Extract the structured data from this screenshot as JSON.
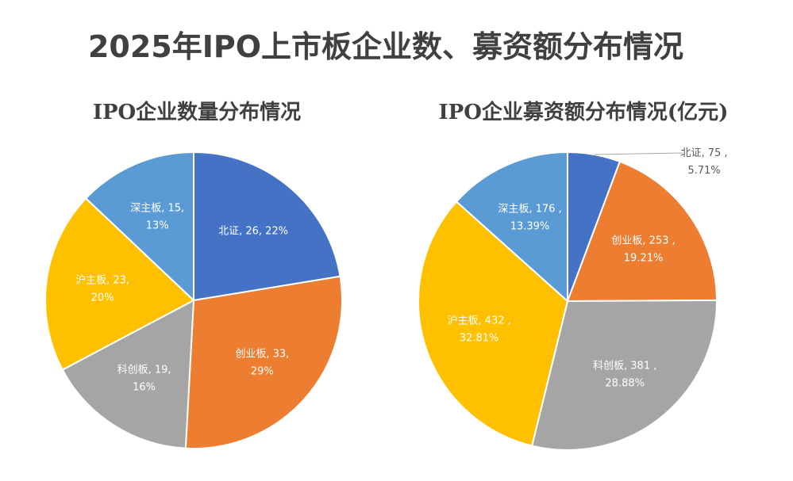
{
  "title": "2025年IPO上市板企业数、募资额分布情况",
  "chart_data": [
    {
      "type": "pie",
      "title": "IPO企业数量分布情况",
      "values": [
        26,
        33,
        19,
        23,
        15
      ],
      "value_labels": [
        "北证, 26, 22%",
        "创业板, 33,\n29%",
        "科创板, 19,\n16%",
        "沪主板, 23,\n20%",
        "深主板, 15,\n13%"
      ],
      "colors": [
        "#4472c4",
        "#ed7d31",
        "#a5a5a5",
        "#ffc000",
        "#5b9bd5"
      ]
    },
    {
      "type": "pie",
      "title": "IPO企业募资额分布情况(亿元)",
      "values": [
        75,
        253,
        381,
        432,
        176
      ],
      "value_labels": [
        "北证, 75 ,\n5.71%",
        "创业板, 253 ,\n19.21%",
        "科创板, 381 ,\n28.88%",
        "沪主板, 432 ,\n32.81%",
        "深主板, 176 ,\n13.39%"
      ],
      "colors": [
        "#4472c4",
        "#ed7d31",
        "#a5a5a5",
        "#ffc000",
        "#5b9bd5"
      ]
    }
  ]
}
